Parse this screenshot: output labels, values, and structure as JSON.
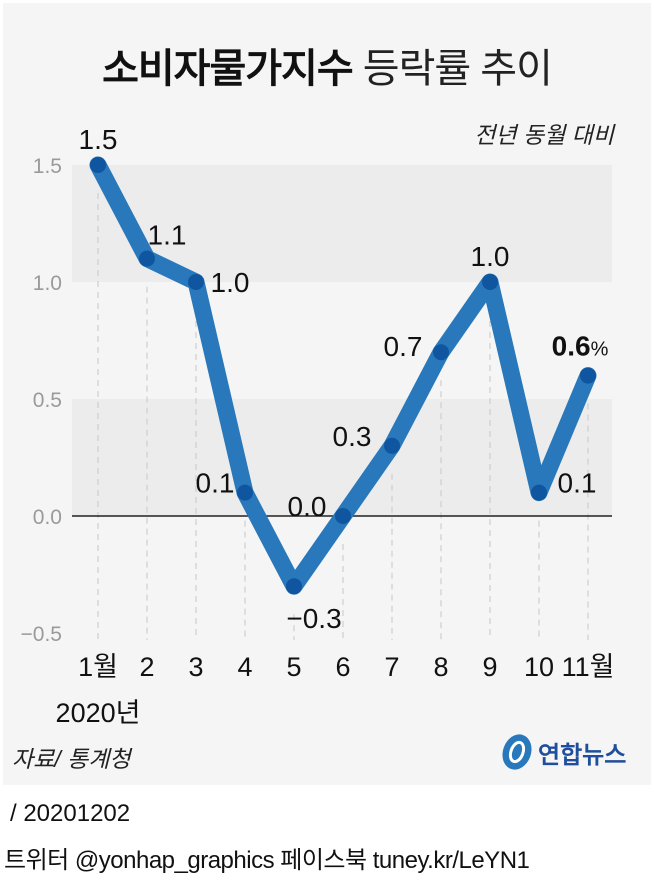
{
  "title": {
    "bold": "소비자물가지수",
    "regular": "등락률 추이"
  },
  "subtitle": "전년 동월 대비",
  "source": "자료/ 통계청",
  "logo": {
    "name": "연합뉴스"
  },
  "footer": {
    "date": "/ 20201202",
    "social": "트위터 @yonhap_graphics  페이스북 tuney.kr/LeYN1"
  },
  "x_year_label": "2020년",
  "colors": {
    "line": "#2878bb",
    "point": "#0f559f",
    "band": "#ececec",
    "background": "#f5f5f5"
  },
  "chart_data": {
    "type": "line",
    "title": "소비자물가지수 등락률 추이",
    "subtitle": "전년 동월 대비",
    "categories": [
      "1월",
      "2",
      "3",
      "4",
      "5",
      "6",
      "7",
      "8",
      "9",
      "10",
      "11월"
    ],
    "values": [
      1.5,
      1.1,
      1.0,
      0.1,
      -0.3,
      0.0,
      0.3,
      0.7,
      1.0,
      0.1,
      0.6
    ],
    "value_labels": [
      "1.5",
      "1.1",
      "1.0",
      "0.1",
      "−0.3",
      "0.0",
      "0.3",
      "0.7",
      "1.0",
      "0.1",
      "0.6"
    ],
    "last_label_unit": "%",
    "xlabel": "2020년",
    "ylabel": "",
    "ylim": [
      -0.5,
      1.5
    ],
    "yticks": [
      "1.5",
      "1.0",
      "0.5",
      "0.0",
      "−0.5"
    ],
    "grid": "alternating bands",
    "source": "자료/ 통계청"
  }
}
